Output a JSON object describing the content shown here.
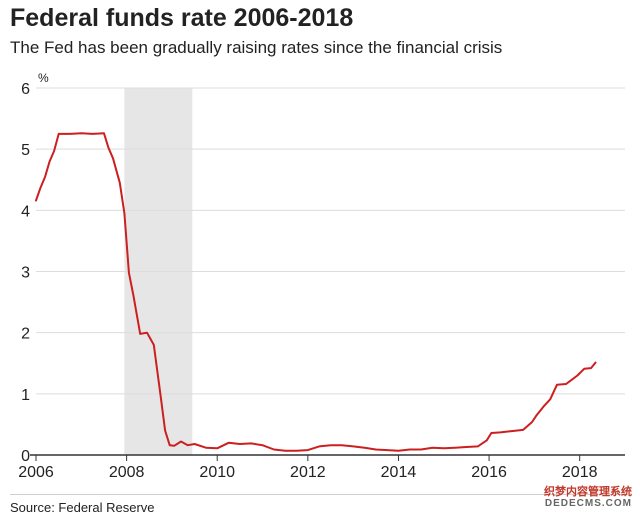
{
  "header": {
    "title": "Federal funds rate 2006-2018",
    "subtitle": "The Fed has been gradually raising rates since the financial crisis"
  },
  "footer": {
    "source": "Source: Federal Reserve",
    "watermark_line1": "织梦内容管理系统",
    "watermark_line2": "DEDECMS.COM"
  },
  "colors": {
    "line": "#cc1f1f",
    "recession_band": "#e6e6e6",
    "gridline": "#dddddd",
    "axis": "#333333",
    "text": "#222222"
  },
  "chart_data": {
    "type": "line",
    "title": "Federal funds rate 2006-2018",
    "subtitle": "The Fed has been gradually raising rates since the financial crisis",
    "ylabel": "%",
    "xlabel": "",
    "xlim": [
      2006.0,
      2019.0
    ],
    "ylim": [
      0,
      6
    ],
    "yticks": [
      0,
      1,
      2,
      3,
      4,
      5,
      6
    ],
    "yticks_labels": [
      "0",
      "1",
      "2",
      "3",
      "4",
      "5",
      "6"
    ],
    "xticks": [
      2006,
      2008,
      2010,
      2012,
      2014,
      2016,
      2018
    ],
    "xticks_labels": [
      "2006",
      "2008",
      "2010",
      "2012",
      "2014",
      "2016",
      "2018"
    ],
    "grid": "horizontal",
    "shaded_region": {
      "x_start": 2007.95,
      "x_end": 2009.45
    },
    "series": [
      {
        "x": [
          2006.0,
          2006.1,
          2006.2,
          2006.3,
          2006.4,
          2006.5,
          2006.6,
          2006.75,
          2007.0,
          2007.25,
          2007.5,
          2007.6,
          2007.7,
          2007.85,
          2007.95,
          2008.05,
          2008.15,
          2008.3,
          2008.45,
          2008.6,
          2008.75,
          2008.85,
          2008.95,
          2009.05,
          2009.2,
          2009.35,
          2009.5,
          2009.75,
          2010.0,
          2010.25,
          2010.5,
          2010.75,
          2011.0,
          2011.25,
          2011.5,
          2011.75,
          2012.0,
          2012.25,
          2012.5,
          2012.75,
          2013.0,
          2013.25,
          2013.5,
          2013.75,
          2014.0,
          2014.25,
          2014.5,
          2014.75,
          2015.0,
          2015.25,
          2015.5,
          2015.75,
          2015.95,
          2016.05,
          2016.25,
          2016.5,
          2016.75,
          2016.95,
          2017.05,
          2017.2,
          2017.35,
          2017.5,
          2017.7,
          2017.95,
          2018.1,
          2018.25,
          2018.35
        ],
        "values": [
          4.16,
          4.37,
          4.55,
          4.8,
          4.97,
          5.25,
          5.25,
          5.25,
          5.26,
          5.25,
          5.26,
          5.02,
          4.85,
          4.45,
          3.95,
          2.98,
          2.61,
          1.98,
          2.0,
          1.8,
          0.97,
          0.4,
          0.16,
          0.15,
          0.22,
          0.16,
          0.18,
          0.12,
          0.11,
          0.2,
          0.18,
          0.19,
          0.16,
          0.09,
          0.07,
          0.07,
          0.08,
          0.14,
          0.16,
          0.16,
          0.14,
          0.12,
          0.09,
          0.08,
          0.07,
          0.09,
          0.09,
          0.12,
          0.11,
          0.12,
          0.13,
          0.14,
          0.24,
          0.36,
          0.37,
          0.39,
          0.41,
          0.54,
          0.65,
          0.79,
          0.91,
          1.15,
          1.16,
          1.3,
          1.41,
          1.42,
          1.51
        ]
      }
    ]
  }
}
